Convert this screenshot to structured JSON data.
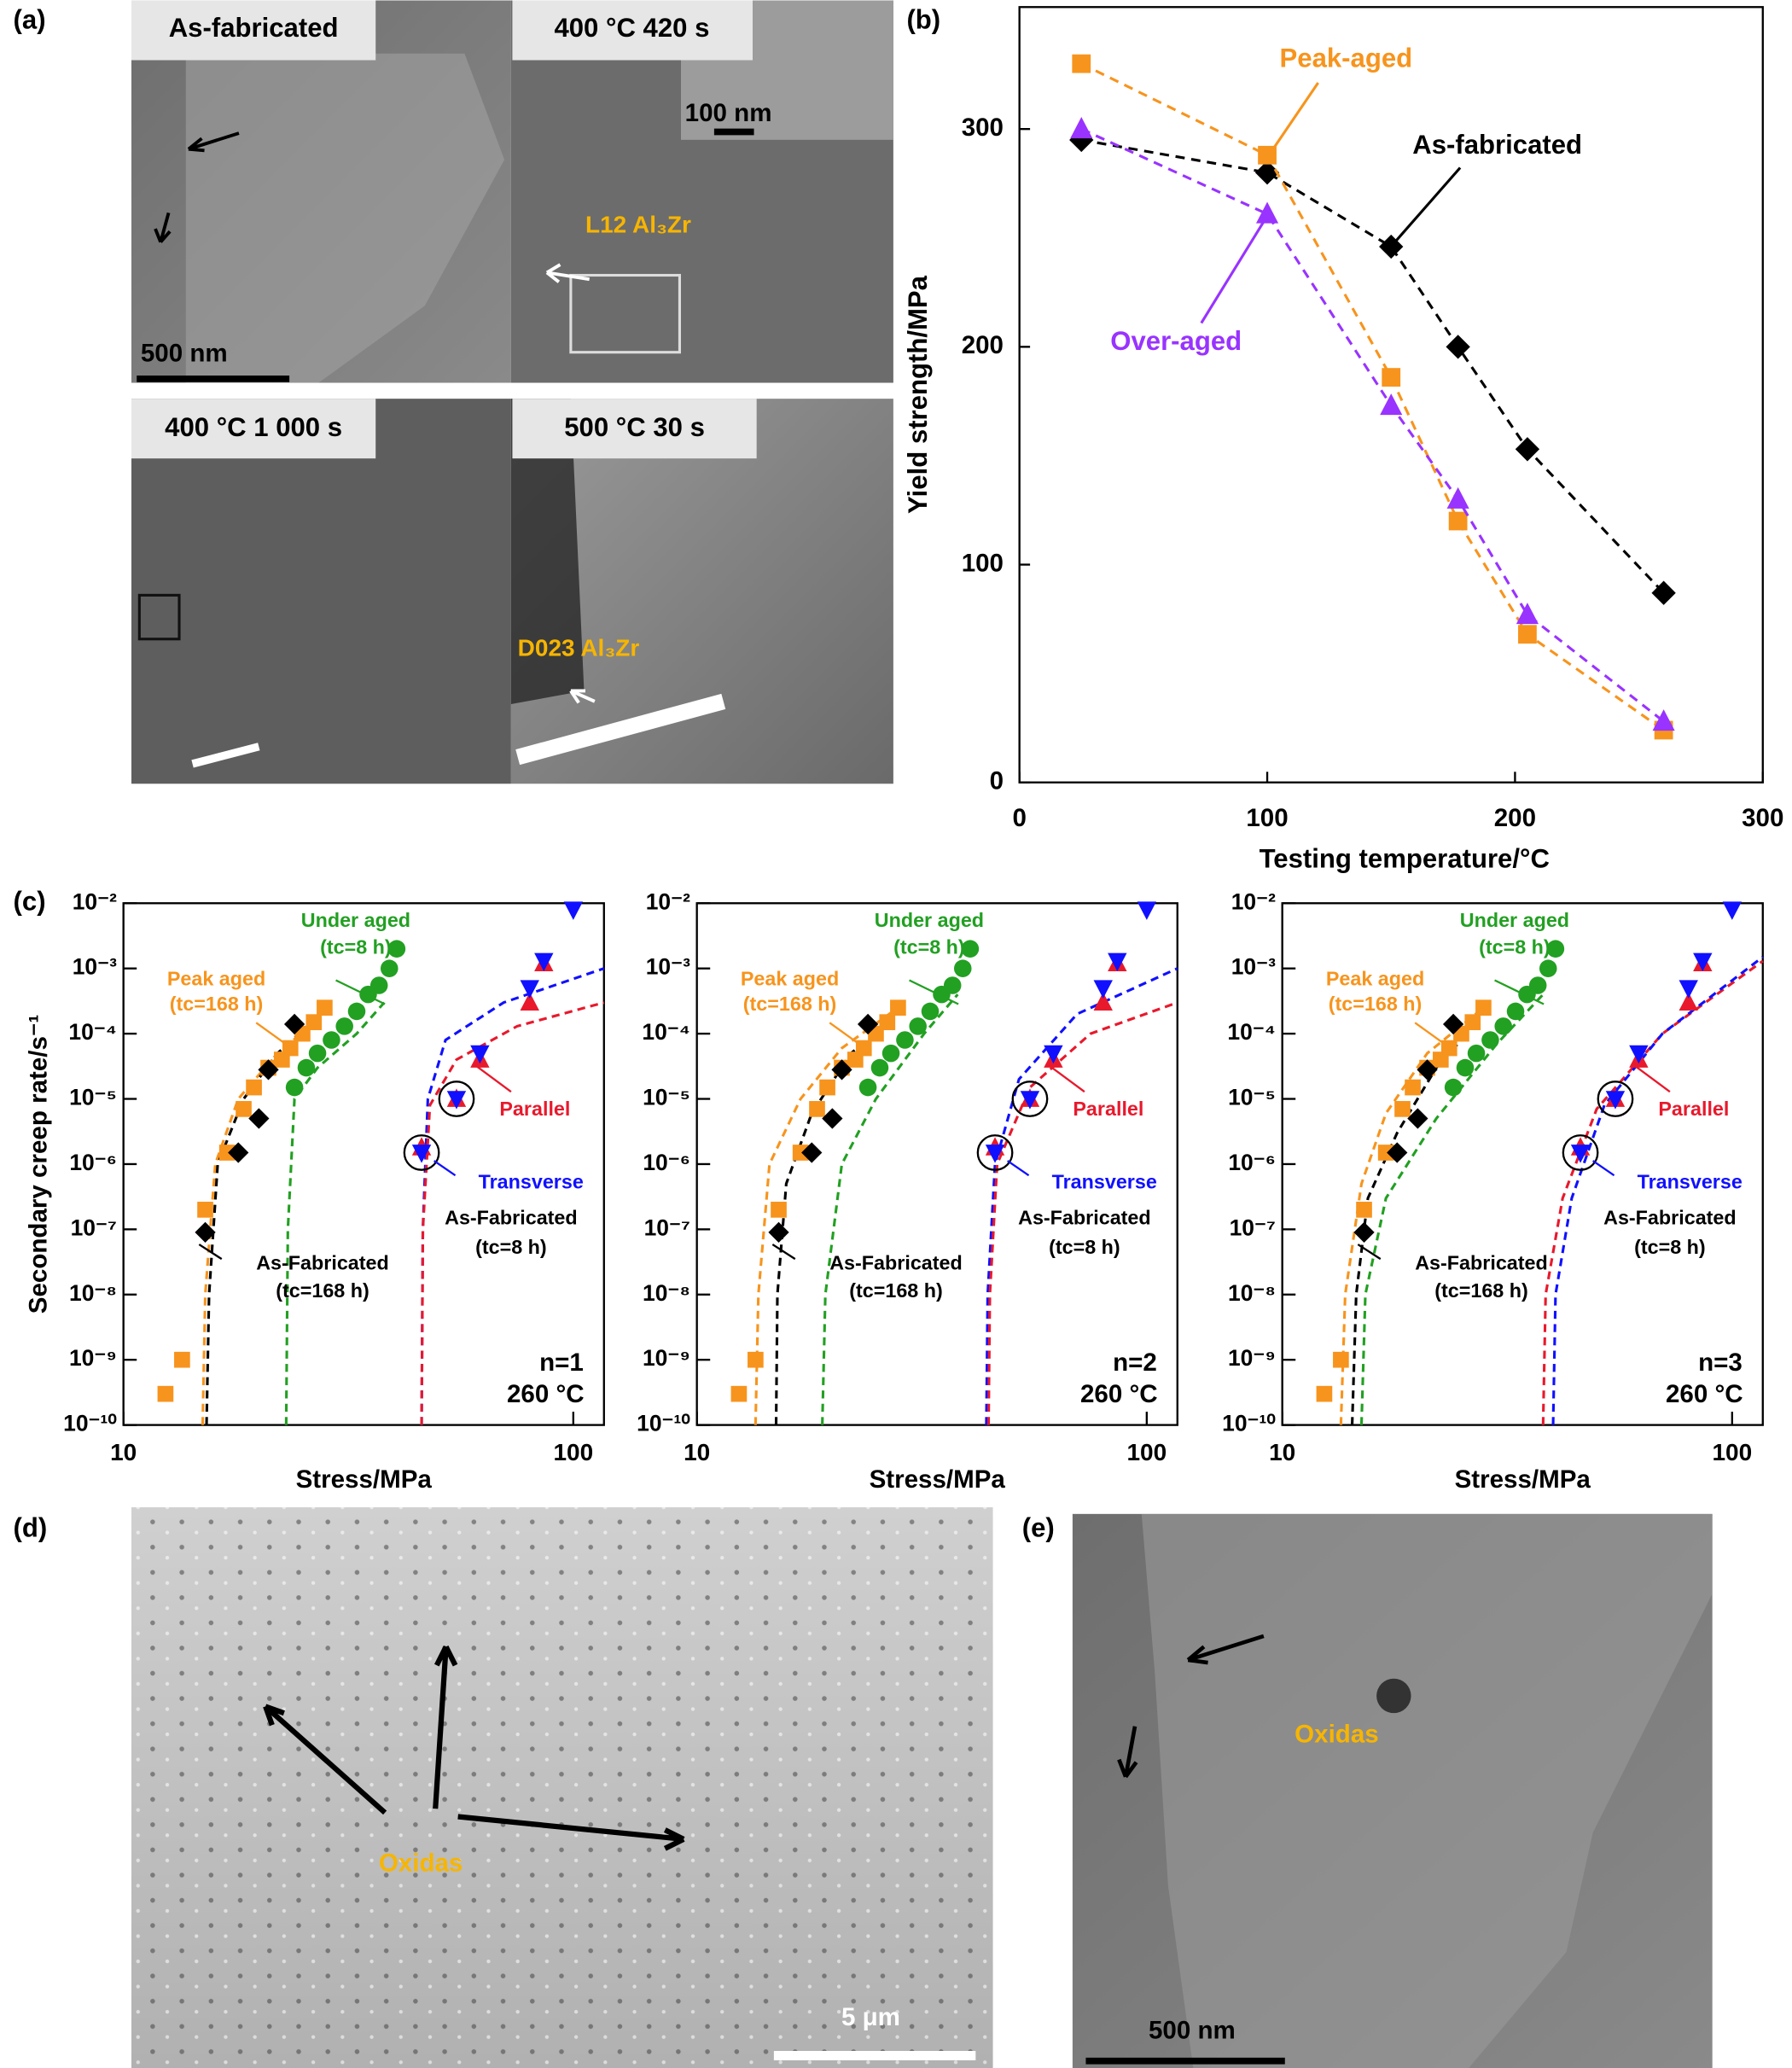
{
  "panel_labels": [
    "(a)",
    "(b)",
    "(c)",
    "(d)",
    "(e)"
  ],
  "micrographs": {
    "a": {
      "titles": [
        "As-fabricated",
        "400 °C 420 s",
        "400 °C 1 000 s",
        "500 °C 30 s"
      ],
      "labels": [
        "L12 Al₃Zr",
        "D023 Al₃Zr"
      ],
      "scale_bars": [
        "500 nm",
        "100 nm"
      ]
    },
    "d": {
      "label": "Oxidas",
      "scale_bar": "5 μm"
    },
    "e": {
      "label": "Oxidas",
      "scale_bar": "500 nm"
    }
  },
  "chart_data": [
    {
      "type": "line",
      "xlabel": "Testing temperature/°C",
      "ylabel": "Yield strength/MPa",
      "xlim": [
        0,
        300
      ],
      "ylim": [
        0,
        356
      ],
      "xticks": [
        0,
        100,
        200,
        300
      ],
      "yticks": [
        0,
        100,
        200,
        300
      ],
      "dashed": true,
      "series": [
        {
          "name": "As-fabricated",
          "color": "#000000",
          "marker": "diamond",
          "x": [
            25,
            100,
            150,
            177,
            205,
            260
          ],
          "values": [
            295,
            280,
            246,
            200,
            153,
            87
          ]
        },
        {
          "name": "Peak-aged",
          "color": "#f7941d",
          "marker": "square",
          "x": [
            25,
            100,
            150,
            177,
            205,
            260
          ],
          "values": [
            330,
            288,
            186,
            120,
            68,
            24
          ]
        },
        {
          "name": "Over-aged",
          "color": "#9933ff",
          "marker": "triangle-up",
          "x": [
            25,
            100,
            150,
            177,
            205,
            260
          ],
          "values": [
            300,
            261,
            173,
            130,
            77,
            28
          ]
        }
      ]
    },
    {
      "type": "scatter",
      "xlabel": "Stress/MPa",
      "ylabel": "Secondary creep rate/s⁻¹",
      "x_log": true,
      "y_log": true,
      "xlim": [
        10,
        117
      ],
      "ylim": [
        1e-10,
        0.01
      ],
      "xticks": [
        10,
        100
      ],
      "yticks": [
        {
          "value": 1e-10,
          "label": "10⁻¹⁰"
        },
        {
          "value": 1e-09,
          "label": "10⁻⁹"
        },
        {
          "value": 1e-08,
          "label": "10⁻⁸"
        },
        {
          "value": 1e-07,
          "label": "10⁻⁷"
        },
        {
          "value": 1e-06,
          "label": "10⁻⁶"
        },
        {
          "value": 1e-05,
          "label": "10⁻⁵"
        },
        {
          "value": 0.0001,
          "label": "10⁻⁴"
        },
        {
          "value": 0.001,
          "label": "10⁻³"
        },
        {
          "value": 0.01,
          "label": "10⁻²"
        }
      ],
      "series": [
        {
          "name": "Peak aged",
          "color": "#f7941d",
          "marker": "square",
          "x": [
            12.4,
            13.5,
            15.2,
            17,
            18.5,
            19.5,
            21,
            22.5,
            23.5,
            25,
            26.5,
            28
          ],
          "values": [
            3e-10,
            1e-09,
            2e-07,
            1.5e-06,
            7e-06,
            1.5e-05,
            3e-05,
            4e-05,
            6e-05,
            0.0001,
            0.00015,
            0.00025
          ]
        },
        {
          "name": "Under aged",
          "color": "#22a022",
          "marker": "circle",
          "x": [
            24,
            25.5,
            27,
            29,
            31,
            33,
            35,
            37,
            39,
            40.5
          ],
          "values": [
            1.5e-05,
            3e-05,
            5e-05,
            8e-05,
            0.00013,
            0.00022,
            0.0004,
            0.00055,
            0.001,
            0.002
          ]
        },
        {
          "name": "As-Fabricated",
          "color": "#000000",
          "marker": "diamond",
          "x": [
            15.2,
            18,
            20,
            21,
            24
          ],
          "values": [
            9e-08,
            1.5e-06,
            5e-06,
            2.8e-05,
            0.00014
          ]
        },
        {
          "name": "Parallel",
          "color": "#e8192c",
          "marker": "triangle-up",
          "x": [
            46,
            55,
            62,
            80,
            86
          ],
          "values": [
            1.8e-06,
            1e-05,
            4e-05,
            0.0003,
            0.0012
          ]
        },
        {
          "name": "Transverse",
          "color": "#1010ff",
          "marker": "triangle-down",
          "circled": [
            0,
            1
          ],
          "x": [
            46,
            55,
            62,
            80,
            86,
            100
          ],
          "values": [
            1.5e-06,
            1e-05,
            5e-05,
            0.0005,
            0.0013,
            0.008
          ]
        }
      ],
      "fits": [
        {
          "color": "#f7941d",
          "x": [
            15,
            15.2,
            16,
            18,
            22,
            28
          ],
          "values": [
            1e-10,
            1e-08,
            1e-06,
            1e-05,
            5e-05,
            0.0002
          ]
        },
        {
          "color": "#000000",
          "x": [
            15.3,
            15.5,
            16.2,
            18.5,
            22,
            25
          ],
          "values": [
            1e-10,
            1e-08,
            1e-06,
            1e-05,
            5e-05,
            0.00011
          ]
        },
        {
          "color": "#22a022",
          "x": [
            23,
            23.2,
            24,
            27,
            33,
            38
          ],
          "values": [
            1e-10,
            1e-07,
            1e-05,
            3e-05,
            0.0001,
            0.0003
          ]
        },
        {
          "color": "#1010ff",
          "x": [
            46,
            46.3,
            47.5,
            52,
            70,
            117
          ],
          "values": [
            1e-10,
            1e-07,
            1e-05,
            8e-05,
            0.0003,
            0.001
          ]
        },
        {
          "color": "#e8192c",
          "x": [
            46,
            46.3,
            48,
            55,
            75,
            117
          ],
          "values": [
            1e-10,
            1e-07,
            8e-06,
            4e-05,
            0.00013,
            0.0003
          ]
        }
      ],
      "annotations": [
        {
          "text": "(tc=168 h)",
          "color": "#f7941d"
        },
        {
          "text": "(tc=8 h)",
          "color": "#22a022"
        },
        {
          "text": "(tc=168 h)",
          "color": "#000000"
        },
        {
          "text": "As-Fabricated",
          "color": "#000000"
        },
        {
          "text": "(tc=8 h)",
          "color": "#000000"
        },
        {
          "text": "n=1",
          "color": "#000000"
        },
        {
          "text": "260 °C",
          "color": "#000000"
        }
      ]
    },
    {
      "type": "scatter",
      "xlabel": "Stress/MPa",
      "x_log": true,
      "y_log": true,
      "xlim": [
        10,
        117
      ],
      "ylim": [
        1e-10,
        0.01
      ],
      "xticks": [
        10,
        100
      ],
      "yticks": [
        {
          "value": 1e-10,
          "label": "10⁻¹⁰"
        },
        {
          "value": 1e-09,
          "label": "10⁻⁹"
        },
        {
          "value": 1e-08,
          "label": "10⁻⁸"
        },
        {
          "value": 1e-07,
          "label": "10⁻⁷"
        },
        {
          "value": 1e-06,
          "label": "10⁻⁶"
        },
        {
          "value": 1e-05,
          "label": "10⁻⁵"
        },
        {
          "value": 0.0001,
          "label": "10⁻⁴"
        },
        {
          "value": 0.001,
          "label": "10⁻³"
        },
        {
          "value": 0.01,
          "label": "10⁻²"
        }
      ],
      "series": [
        {
          "name": "Peak aged",
          "color": "#f7941d",
          "marker": "square",
          "x": [
            12.4,
            13.5,
            15.2,
            17,
            18.5,
            19.5,
            21,
            22.5,
            23.5,
            25,
            26.5,
            28
          ],
          "values": [
            3e-10,
            1e-09,
            2e-07,
            1.5e-06,
            7e-06,
            1.5e-05,
            3e-05,
            4e-05,
            6e-05,
            0.0001,
            0.00015,
            0.00025
          ]
        },
        {
          "name": "Under aged",
          "color": "#22a022",
          "marker": "circle",
          "x": [
            24,
            25.5,
            27,
            29,
            31,
            33,
            35,
            37,
            39,
            40.5
          ],
          "values": [
            1.5e-05,
            3e-05,
            5e-05,
            8e-05,
            0.00013,
            0.00022,
            0.0004,
            0.00055,
            0.001,
            0.002
          ]
        },
        {
          "name": "As-Fabricated",
          "color": "#000000",
          "marker": "diamond",
          "x": [
            15.2,
            18,
            20,
            21,
            24
          ],
          "values": [
            9e-08,
            1.5e-06,
            5e-06,
            2.8e-05,
            0.00014
          ]
        },
        {
          "name": "Parallel",
          "color": "#e8192c",
          "marker": "triangle-up",
          "x": [
            46,
            55,
            62,
            80,
            86
          ],
          "values": [
            1.8e-06,
            1e-05,
            4e-05,
            0.0003,
            0.0012
          ]
        },
        {
          "name": "Transverse",
          "color": "#1010ff",
          "marker": "triangle-down",
          "circled": [
            0,
            1
          ],
          "x": [
            46,
            55,
            62,
            80,
            86,
            100
          ],
          "values": [
            1.5e-06,
            1e-05,
            5e-05,
            0.0005,
            0.0013,
            0.008
          ]
        }
      ],
      "fits": [
        {
          "color": "#f7941d",
          "x": [
            13.5,
            13.7,
            14.5,
            17,
            21,
            28
          ],
          "values": [
            1e-10,
            1e-08,
            1e-06,
            1e-05,
            6e-05,
            0.00025
          ]
        },
        {
          "color": "#000000",
          "x": [
            15,
            15.1,
            15.8,
            18,
            22,
            25
          ],
          "values": [
            1e-10,
            1e-08,
            5e-07,
            6e-06,
            5e-05,
            0.0001
          ]
        },
        {
          "color": "#22a022",
          "x": [
            19,
            19.3,
            21,
            25,
            32,
            38
          ],
          "values": [
            1e-10,
            1e-08,
            1e-06,
            1e-05,
            0.0001,
            0.0004
          ]
        },
        {
          "color": "#1010ff",
          "x": [
            44,
            44.3,
            46,
            52,
            70,
            117
          ],
          "values": [
            1e-10,
            1e-08,
            1e-06,
            2e-05,
            0.0002,
            0.001
          ]
        },
        {
          "color": "#e8192c",
          "x": [
            44.5,
            44.8,
            46.5,
            55,
            75,
            117
          ],
          "values": [
            1e-10,
            1e-08,
            1e-06,
            1.5e-05,
            0.0001,
            0.0003
          ]
        }
      ],
      "annotations": [
        {
          "text": "(tc=168 h)",
          "color": "#f7941d"
        },
        {
          "text": "(tc=8 h)",
          "color": "#22a022"
        },
        {
          "text": "(tc=168 h)",
          "color": "#000000"
        },
        {
          "text": "As-Fabricated",
          "color": "#000000"
        },
        {
          "text": "(tc=8 h)",
          "color": "#000000"
        },
        {
          "text": "n=2",
          "color": "#000000"
        },
        {
          "text": "260 °C",
          "color": "#000000"
        }
      ]
    },
    {
      "type": "scatter",
      "xlabel": "Stress/MPa",
      "x_log": true,
      "y_log": true,
      "xlim": [
        10,
        117
      ],
      "ylim": [
        1e-10,
        0.01
      ],
      "xticks": [
        10,
        100
      ],
      "yticks": [
        {
          "value": 1e-10,
          "label": "10⁻¹⁰"
        },
        {
          "value": 1e-09,
          "label": "10⁻⁹"
        },
        {
          "value": 1e-08,
          "label": "10⁻⁸"
        },
        {
          "value": 1e-07,
          "label": "10⁻⁷"
        },
        {
          "value": 1e-06,
          "label": "10⁻⁶"
        },
        {
          "value": 1e-05,
          "label": "10⁻⁵"
        },
        {
          "value": 0.0001,
          "label": "10⁻⁴"
        },
        {
          "value": 0.001,
          "label": "10⁻³"
        },
        {
          "value": 0.01,
          "label": "10⁻²"
        }
      ],
      "series": [
        {
          "name": "Peak aged",
          "color": "#f7941d",
          "marker": "square",
          "x": [
            12.4,
            13.5,
            15.2,
            17,
            18.5,
            19.5,
            21,
            22.5,
            23.5,
            25,
            26.5,
            28
          ],
          "values": [
            3e-10,
            1e-09,
            2e-07,
            1.5e-06,
            7e-06,
            1.5e-05,
            3e-05,
            4e-05,
            6e-05,
            0.0001,
            0.00015,
            0.00025
          ]
        },
        {
          "name": "Under aged",
          "color": "#22a022",
          "marker": "circle",
          "x": [
            24,
            25.5,
            27,
            29,
            31,
            33,
            35,
            37,
            39,
            40.5
          ],
          "values": [
            1.5e-05,
            3e-05,
            5e-05,
            8e-05,
            0.00013,
            0.00022,
            0.0004,
            0.00055,
            0.001,
            0.002
          ]
        },
        {
          "name": "As-Fabricated",
          "color": "#000000",
          "marker": "diamond",
          "x": [
            15.2,
            18,
            20,
            21,
            24
          ],
          "values": [
            9e-08,
            1.5e-06,
            5e-06,
            2.8e-05,
            0.00014
          ]
        },
        {
          "name": "Parallel",
          "color": "#e8192c",
          "marker": "triangle-up",
          "x": [
            46,
            55,
            62,
            80,
            86
          ],
          "values": [
            1.8e-06,
            1e-05,
            4e-05,
            0.0003,
            0.0012
          ]
        },
        {
          "name": "Transverse",
          "color": "#1010ff",
          "marker": "triangle-down",
          "circled": [
            0,
            1
          ],
          "x": [
            46,
            55,
            62,
            80,
            86,
            100
          ],
          "values": [
            1.5e-06,
            1e-05,
            5e-05,
            0.0005,
            0.0013,
            0.008
          ]
        }
      ],
      "fits": [
        {
          "color": "#f7941d",
          "x": [
            13.5,
            13.8,
            15,
            17,
            21,
            28
          ],
          "values": [
            1e-10,
            1e-08,
            5e-07,
            6e-06,
            5e-05,
            0.00025
          ]
        },
        {
          "color": "#000000",
          "x": [
            14.3,
            14.6,
            15.5,
            18,
            22,
            25
          ],
          "values": [
            1e-10,
            1e-08,
            3e-07,
            3e-06,
            3e-05,
            8e-05
          ]
        },
        {
          "color": "#22a022",
          "x": [
            15,
            15.3,
            17,
            22,
            30,
            38
          ],
          "values": [
            1e-10,
            1e-08,
            3e-07,
            5e-06,
            7e-05,
            0.0004
          ]
        },
        {
          "color": "#e8192c",
          "x": [
            38,
            38.5,
            42,
            50,
            70,
            117
          ],
          "values": [
            1e-10,
            1e-08,
            3e-07,
            7e-06,
            0.0001,
            0.0013
          ]
        },
        {
          "color": "#1010ff",
          "x": [
            40,
            40.5,
            44,
            52,
            70,
            117
          ],
          "values": [
            1e-10,
            1e-08,
            3e-07,
            8e-06,
            0.0001,
            0.0015
          ]
        }
      ],
      "annotations": [
        {
          "text": "(tc=168 h)",
          "color": "#f7941d"
        },
        {
          "text": "(tc=8 h)",
          "color": "#22a022"
        },
        {
          "text": "(tc=168 h)",
          "color": "#000000"
        },
        {
          "text": "As-Fabricated",
          "color": "#000000"
        },
        {
          "text": "(tc=8 h)",
          "color": "#000000"
        },
        {
          "text": "n=3",
          "color": "#000000"
        },
        {
          "text": "260 °C",
          "color": "#000000"
        }
      ]
    }
  ]
}
